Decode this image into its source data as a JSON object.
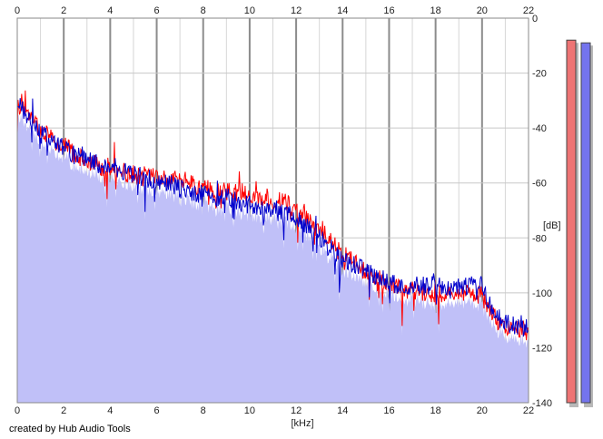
{
  "credit": "created by Hub Audio Tools",
  "chart_data": {
    "type": "line",
    "xlabel": "[kHz]",
    "ylabel": "[dB]",
    "xlim": [
      0,
      22
    ],
    "ylim": [
      -140,
      0
    ],
    "x_ticks": [
      "0",
      "2",
      "4",
      "6",
      "8",
      "10",
      "12",
      "14",
      "16",
      "18",
      "20",
      "22"
    ],
    "y_ticks": [
      "0",
      "-20",
      "-40",
      "-60",
      "-80",
      "-100",
      "-120",
      "-140"
    ],
    "grid": true,
    "fill_color": "#c0c0f8",
    "series": [
      {
        "color": "#ff0000",
        "x": [
          0,
          0.25,
          0.5,
          0.75,
          1,
          1.5,
          2,
          2.5,
          3,
          3.5,
          4,
          4.5,
          5,
          5.5,
          6,
          6.5,
          7,
          7.5,
          8,
          8.5,
          9,
          9.5,
          10,
          10.5,
          11,
          11.5,
          12,
          12.5,
          13,
          13.5,
          14,
          14.5,
          15,
          15.5,
          16,
          16.5,
          17,
          17.5,
          18,
          18.5,
          19,
          19.5,
          20,
          20.5,
          21,
          21.5,
          22
        ],
        "y": [
          -33,
          -30,
          -36,
          -38,
          -41,
          -44,
          -46,
          -50,
          -52,
          -54,
          -54,
          -56,
          -57,
          -58,
          -58,
          -59,
          -59,
          -60,
          -62,
          -63,
          -63,
          -64,
          -64,
          -65,
          -66,
          -67,
          -70,
          -73,
          -77,
          -81,
          -86,
          -89,
          -93,
          -95,
          -97,
          -99,
          -99,
          -100,
          -100,
          -100,
          -100,
          -100,
          -101,
          -109,
          -112,
          -113,
          -114
        ]
      },
      {
        "color": "#0000cc",
        "x": [
          0,
          0.25,
          0.5,
          0.75,
          1,
          1.5,
          2,
          2.5,
          3,
          3.5,
          4,
          4.5,
          5,
          5.5,
          6,
          6.5,
          7,
          7.5,
          8,
          8.5,
          9,
          9.5,
          10,
          10.5,
          11,
          11.5,
          12,
          12.5,
          13,
          13.5,
          14,
          14.5,
          15,
          15.5,
          16,
          16.5,
          17,
          17.5,
          18,
          18.5,
          19,
          19.5,
          20,
          20.5,
          21,
          21.5,
          22
        ],
        "y": [
          -31,
          -34,
          -37,
          -40,
          -42,
          -45,
          -47,
          -50,
          -51,
          -53,
          -54,
          -55,
          -57,
          -58,
          -59,
          -60,
          -62,
          -63,
          -64,
          -65,
          -65,
          -67,
          -68,
          -69,
          -70,
          -71,
          -73,
          -76,
          -80,
          -84,
          -88,
          -90,
          -92,
          -94,
          -96,
          -98,
          -97,
          -98,
          -96,
          -99,
          -98,
          -97,
          -97,
          -108,
          -111,
          -112,
          -111
        ]
      }
    ],
    "level_meters": [
      {
        "channel": "left",
        "color": "#ee7474",
        "level_db": -8
      },
      {
        "channel": "right",
        "color": "#7474ee",
        "level_db": -9
      }
    ]
  }
}
